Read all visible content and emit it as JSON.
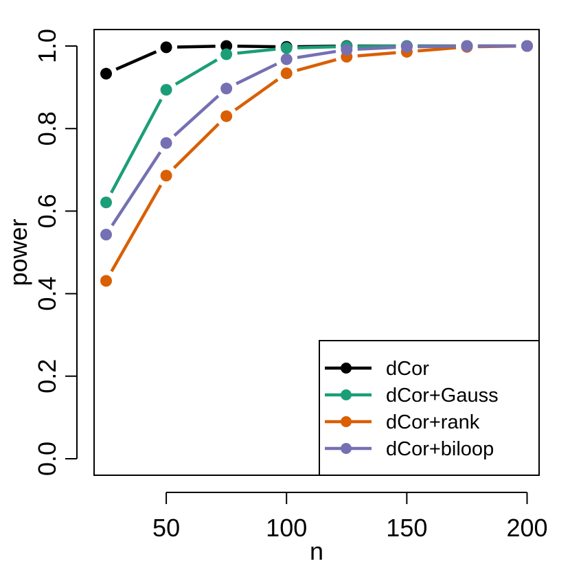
{
  "chart_data": {
    "type": "line",
    "title": "",
    "xlabel": "n",
    "ylabel": "power",
    "xlim": [
      20,
      205
    ],
    "ylim": [
      -0.04,
      1.04
    ],
    "x": [
      25,
      50,
      75,
      100,
      125,
      150,
      175,
      200
    ],
    "xticks": [
      50,
      100,
      150,
      200
    ],
    "xtick_labels": [
      "50",
      "100",
      "150",
      "200"
    ],
    "yticks": [
      0.0,
      0.2,
      0.4,
      0.6,
      0.8,
      1.0
    ],
    "ytick_labels": [
      "0.0",
      "0.2",
      "0.4",
      "0.6",
      "0.8",
      "1.0"
    ],
    "grid": false,
    "legend_position": "bottom-right",
    "series": [
      {
        "name": "dCor",
        "color": "#000000",
        "values": [
          0.933,
          0.997,
          1.0,
          0.998,
          1.0,
          1.0,
          1.0,
          1.0
        ]
      },
      {
        "name": "dCor+Gauss",
        "color": "#1B9E77",
        "values": [
          0.621,
          0.894,
          0.98,
          0.995,
          0.999,
          1.0,
          1.0,
          1.0
        ]
      },
      {
        "name": "dCor+rank",
        "color": "#D95F02",
        "values": [
          0.431,
          0.686,
          0.83,
          0.934,
          0.974,
          0.986,
          0.998,
          1.0
        ]
      },
      {
        "name": "dCor+biloop",
        "color": "#7570B3",
        "values": [
          0.543,
          0.765,
          0.897,
          0.968,
          0.991,
          0.998,
          1.0,
          1.0
        ]
      }
    ]
  }
}
